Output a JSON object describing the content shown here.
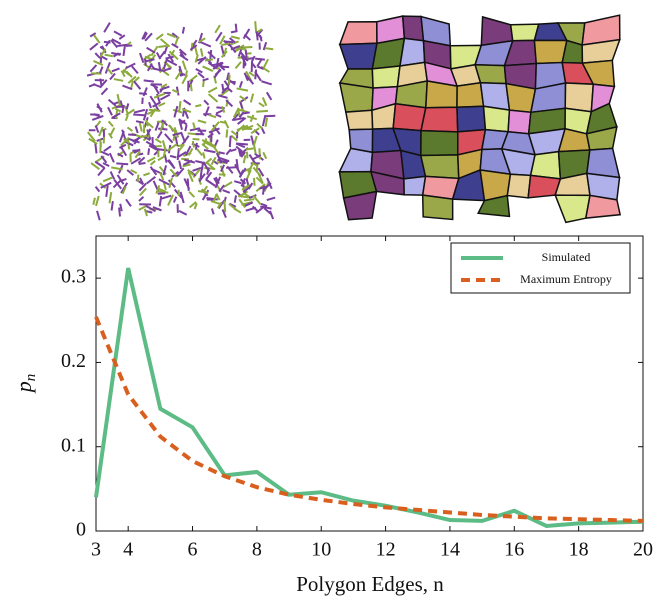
{
  "chart_data": {
    "type": "line",
    "x": [
      3,
      4,
      5,
      6,
      7,
      8,
      9,
      10,
      11,
      12,
      13,
      14,
      15,
      16,
      17,
      18,
      19,
      20
    ],
    "series": [
      {
        "name": "Simulated",
        "color": "#5dbb86",
        "dash": "solid",
        "values": [
          0.04,
          0.312,
          0.145,
          0.123,
          0.066,
          0.07,
          0.043,
          0.046,
          0.036,
          0.03,
          0.022,
          0.013,
          0.012,
          0.024,
          0.006,
          0.009,
          0.01,
          0.011
        ]
      },
      {
        "name": "Maximum Entropy",
        "color": "#d95f1e",
        "dash": "dashed",
        "values": [
          0.254,
          0.162,
          0.112,
          0.083,
          0.065,
          0.052,
          0.043,
          0.037,
          0.032,
          0.028,
          0.025,
          0.022,
          0.019,
          0.017,
          0.015,
          0.014,
          0.013,
          0.012
        ]
      }
    ],
    "xlim": [
      3,
      20
    ],
    "xticks": [
      3,
      4,
      6,
      8,
      10,
      12,
      14,
      16,
      18,
      20
    ],
    "ylim": [
      0,
      0.35
    ],
    "yticks": [
      0,
      0.1,
      0.2,
      0.3
    ],
    "xlabel": "Polygon Edges, n",
    "ylabel": {
      "base": "p",
      "sub": "n"
    },
    "legend": "upper right",
    "grid": false
  }
}
